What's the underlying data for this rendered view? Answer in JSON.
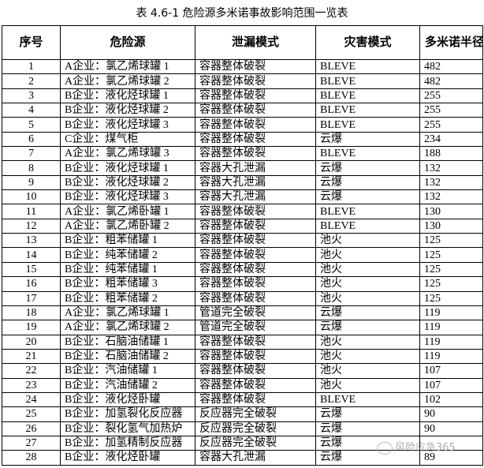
{
  "title": "表 4.6-1  危险源多米诺事故影响范围一览表",
  "headers": [
    "序号",
    "危险源",
    "泄漏模式",
    "灾害模式",
    "多米诺半径(m)"
  ],
  "rows": [
    [
      "1",
      "A企业：氯乙烯球罐 1",
      "容器整体破裂",
      "BLEVE",
      "482"
    ],
    [
      "2",
      "A企业：氯乙烯球罐 2",
      "容器整体破裂",
      "BLEVE",
      "482"
    ],
    [
      "3",
      "B企业：液化烃球罐 1",
      "容器整体破裂",
      "BLEVE",
      "255"
    ],
    [
      "4",
      "B企业：液化烃球罐 2",
      "容器整体破裂",
      "BLEVE",
      "255"
    ],
    [
      "5",
      "B企业：液化烃球罐 3",
      "容器整体破裂",
      "BLEVE",
      "255"
    ],
    [
      "6",
      "C企业：煤气柜",
      "容器整体破裂",
      "云爆",
      "234"
    ],
    [
      "7",
      "A企业：氯乙烯球罐 3",
      "容器整体破裂",
      "BLEVE",
      "188"
    ],
    [
      "8",
      "B企业：液化烃球罐 1",
      "容器大孔泄漏",
      "云爆",
      "132"
    ],
    [
      "9",
      "B企业：液化烃球罐 2",
      "容器大孔泄漏",
      "云爆",
      "132"
    ],
    [
      "10",
      "B企业：液化烃球罐 3",
      "容器大孔泄漏",
      "云爆",
      "132"
    ],
    [
      "11",
      "A企业：氯乙烯卧罐 1",
      "容器整体破裂",
      "BLEVE",
      "130"
    ],
    [
      "12",
      "A企业：氯乙烯卧罐 2",
      "容器整体破裂",
      "BLEVE",
      "130"
    ],
    [
      "13",
      "B企业：粗苯储罐 1",
      "容器整体破裂",
      "池火",
      "125"
    ],
    [
      "14",
      "B企业：纯苯储罐 2",
      "容器整体破裂",
      "池火",
      "125"
    ],
    [
      "15",
      "B企业：纯苯储罐 1",
      "容器整体破裂",
      "池火",
      "125"
    ],
    [
      "16",
      "B企业：粗苯储罐 3",
      "容器整体破裂",
      "池火",
      "125"
    ],
    [
      "17",
      "B企业：粗苯储罐 2",
      "容器整体破裂",
      "池火",
      "125"
    ],
    [
      "18",
      "A企业：氯乙烯球罐 1",
      "管道完全破裂",
      "云爆",
      "119"
    ],
    [
      "19",
      "A企业：氯乙烯球罐 2",
      "管道完全破裂",
      "云爆",
      "119"
    ],
    [
      "20",
      "B企业：石脑油储罐 1",
      "容器整体破裂",
      "池火",
      "119"
    ],
    [
      "21",
      "B企业：石脑油储罐 2",
      "容器整体破裂",
      "池火",
      "119"
    ],
    [
      "22",
      "B企业：汽油储罐 1",
      "容器整体破裂",
      "池火",
      "107"
    ],
    [
      "23",
      "B企业：汽油储罐 2",
      "容器整体破裂",
      "池火",
      "107"
    ],
    [
      "24",
      "B企业：液化烃卧罐",
      "容器整体破裂",
      "BLEVE",
      "102"
    ],
    [
      "25",
      "B企业：加氢裂化反应器",
      "反应器完全破裂",
      "云爆",
      "90"
    ],
    [
      "26",
      "B企业：裂化氢气加热炉",
      "反应器完全破裂",
      "云爆",
      "90"
    ],
    [
      "27",
      "B企业：加氢精制反应器",
      "反应器完全破裂",
      "云爆",
      ""
    ],
    [
      "28",
      "B企业：液化烃卧罐",
      "容器大孔泄漏",
      "云爆",
      "89"
    ]
  ],
  "watermark": "风险应急365"
}
